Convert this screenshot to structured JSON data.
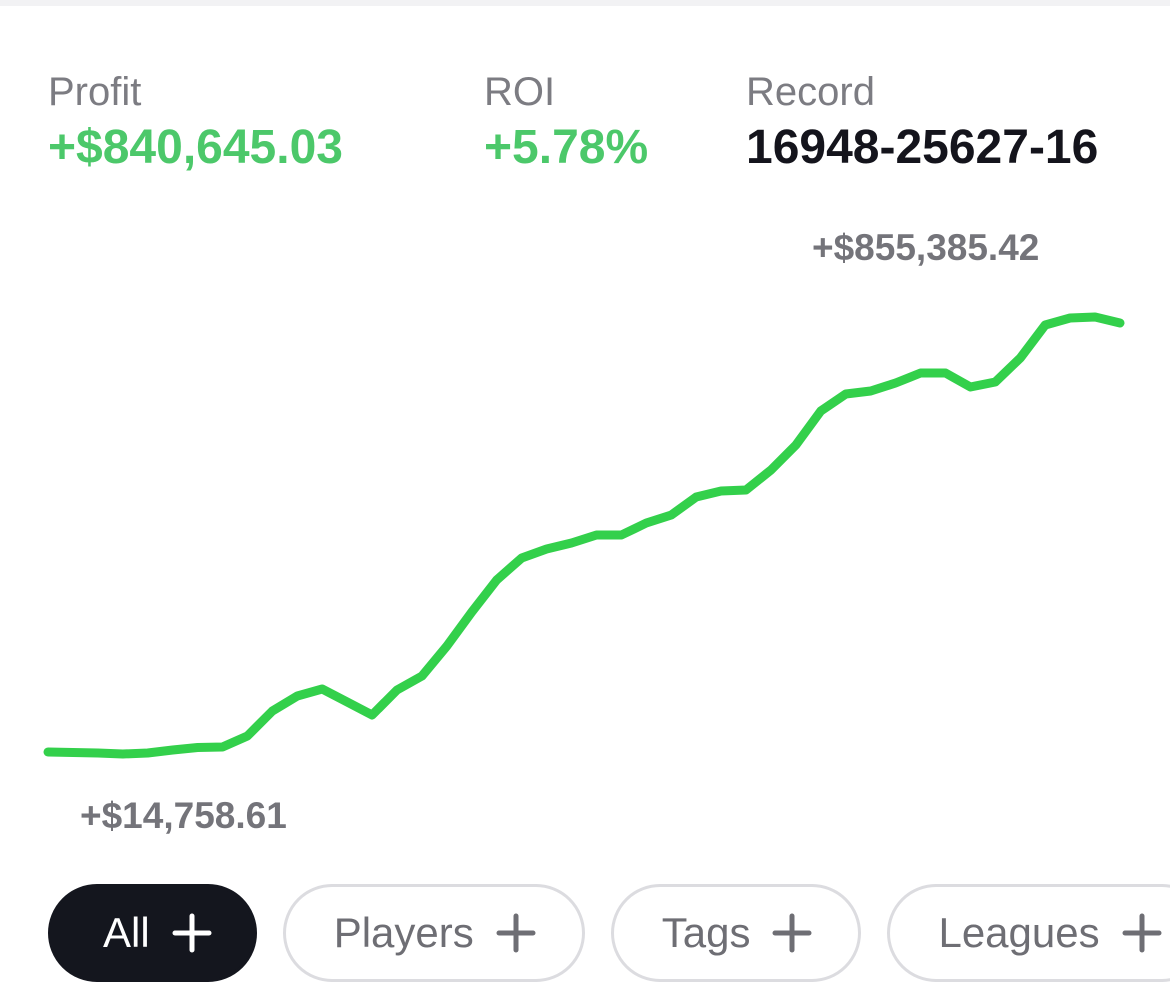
{
  "header": {
    "profit": {
      "label": "Profit",
      "value": "+$840,645.03"
    },
    "roi": {
      "label": "ROI",
      "value": "+5.78%"
    },
    "record": {
      "label": "Record",
      "value": "16948-25627-16"
    }
  },
  "chart_data": {
    "type": "line",
    "color": "#33d04b",
    "values": [
      18606,
      17644,
      16682,
      14758.61,
      16682,
      22453,
      27262,
      28224,
      49384,
      97475,
      126330,
      139795,
      114788,
      89781,
      137871,
      164802,
      222511,
      287914,
      349471,
      391790,
      409103,
      420645,
      436034,
      436034,
      459118,
      474506,
      509132,
      520673,
      522597,
      561070,
      609161,
      674564,
      707266,
      713037,
      728426,
      747662,
      747662,
      720731,
      730349,
      776516,
      839996,
      853461,
      855385.42,
      843844
    ],
    "max_label": "+$855,385.42",
    "min_label": "+$14,758.61"
  },
  "filters": [
    "All",
    "Players",
    "Tags",
    "Leagues"
  ]
}
